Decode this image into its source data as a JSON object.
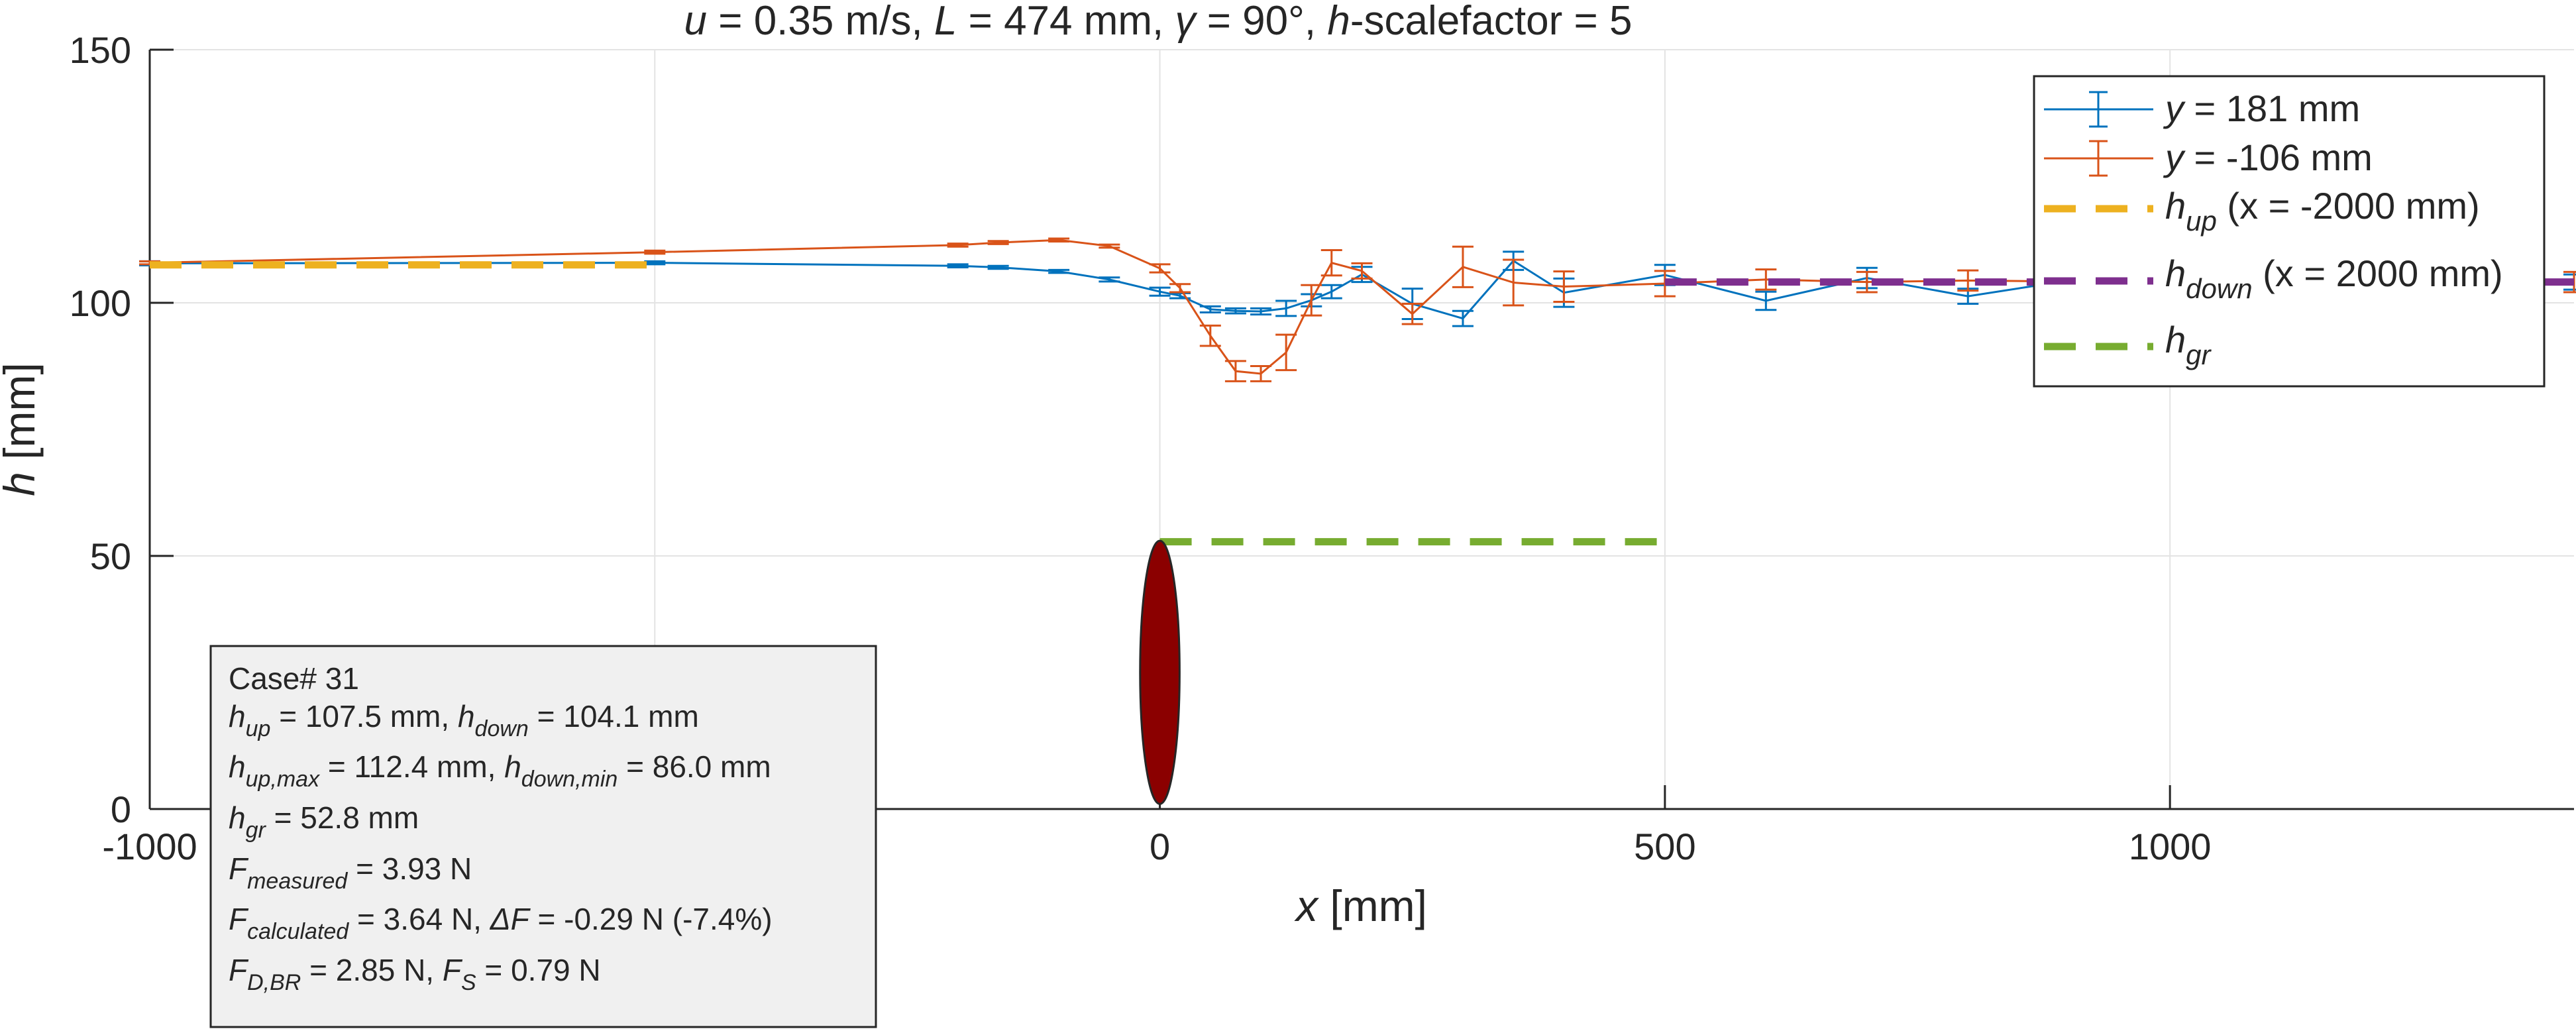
{
  "chart_data": {
    "type": "line",
    "title_parts": {
      "u_sym": "u",
      "u_rest": " = 0.35 m/s, ",
      "L_sym": "L",
      "L_rest": " = 474 mm, ",
      "g_sym": "γ",
      "g_rest": " = 90°, ",
      "h_sym": "h",
      "h_rest": "-scalefactor = 5"
    },
    "xlabel": {
      "sym": "x",
      "unit": " [mm]"
    },
    "ylabel": {
      "sym": "h",
      "unit": " [mm]"
    },
    "xlim": [
      -1000,
      1400
    ],
    "ylim": [
      0,
      150
    ],
    "xticks": [
      -1000,
      -500,
      0,
      500,
      1000
    ],
    "xtick_labels": [
      "-1000",
      "",
      "0",
      "500",
      "1000"
    ],
    "yticks": [
      0,
      50,
      100,
      150
    ],
    "ytick_labels": [
      "0",
      "50",
      "100",
      "150"
    ],
    "grid": true,
    "legend_placement": "top-right",
    "series": [
      {
        "name": "y = 181 mm",
        "name_sym": "y",
        "name_rest": " = 181 mm",
        "color": "#0072BD",
        "x": [
          -1000,
          -500,
          -200,
          -160,
          -100,
          -50,
          0,
          20,
          50,
          75,
          100,
          125,
          150,
          170,
          200,
          250,
          300,
          350,
          400,
          500,
          600,
          700,
          800,
          900,
          1000,
          1100,
          1200,
          1300,
          1400
        ],
        "y": [
          107.8,
          107.9,
          107.3,
          107.0,
          106.2,
          104.6,
          102.2,
          101.4,
          98.7,
          98.4,
          98.3,
          98.9,
          100.5,
          102.2,
          105.6,
          99.8,
          96.9,
          108.3,
          102.0,
          105.5,
          100.4,
          104.9,
          101.3,
          104.4,
          104.1,
          104.3,
          104.0,
          104.2,
          104.1
        ],
        "err": [
          0.4,
          0.3,
          0.3,
          0.3,
          0.3,
          0.4,
          0.8,
          0.5,
          0.6,
          0.5,
          0.6,
          1.5,
          1.2,
          1.3,
          1.5,
          3.0,
          1.5,
          1.8,
          2.8,
          2.0,
          1.8,
          2.0,
          1.5,
          1.5,
          1.5,
          1.5,
          1.5,
          1.5,
          1.5
        ]
      },
      {
        "name": "y = -106 mm",
        "name_sym": "y",
        "name_rest": " = -106 mm",
        "color": "#D95319",
        "x": [
          -1000,
          -500,
          -200,
          -160,
          -100,
          -50,
          0,
          20,
          50,
          75,
          100,
          125,
          150,
          170,
          200,
          250,
          300,
          350,
          400,
          500,
          600,
          700,
          800,
          900,
          1000,
          1100,
          1200,
          1300,
          1400
        ],
        "y": [
          107.9,
          110.0,
          111.4,
          111.9,
          112.4,
          111.2,
          106.8,
          102.9,
          93.5,
          86.5,
          86.0,
          90.2,
          100.5,
          107.9,
          106.3,
          97.8,
          107.1,
          104.0,
          103.2,
          103.8,
          104.6,
          104.1,
          104.4,
          104.2,
          104.1,
          104.2,
          104.1,
          104.2,
          104.1
        ],
        "err": [
          0.3,
          0.3,
          0.3,
          0.3,
          0.3,
          0.3,
          0.8,
          0.8,
          2.0,
          2.0,
          1.5,
          3.5,
          3.0,
          2.5,
          1.5,
          2.0,
          4.0,
          4.5,
          3.0,
          2.5,
          2.0,
          2.0,
          2.0,
          2.0,
          2.0,
          2.0,
          2.0,
          2.0,
          2.0
        ]
      },
      {
        "name": "h_up (x = -2000 mm)",
        "name_sym": "h",
        "name_sub": "up",
        "name_rest": " (x = -2000 mm)",
        "color": "#EDB120",
        "dashed": true,
        "x": [
          -1000,
          -1000,
          -500
        ],
        "y": [
          107.5,
          107.5,
          107.5
        ]
      },
      {
        "name": "h_down (x = 2000 mm)",
        "name_sym": "h",
        "name_sub": "down",
        "name_rest": " (x = 2000 mm)",
        "color": "#7E2F8E",
        "dashed": true,
        "x": [
          500,
          1400
        ],
        "y": [
          104.1,
          104.1
        ]
      },
      {
        "name": "h_gr",
        "name_sym": "h",
        "name_sub": "gr",
        "name_rest": "",
        "color": "#77AC30",
        "dashed": true,
        "x": [
          0,
          500
        ],
        "y": [
          52.8,
          52.8
        ]
      }
    ],
    "obstacle": {
      "x": 0,
      "y_center": 27,
      "y_half_height": 26,
      "x_half_width": 23,
      "color": "#8B0000"
    },
    "annotation": {
      "case": "Case# 31",
      "l2": {
        "a": "h",
        "a_sub": "up",
        "a_rest": " = 107.5 mm, ",
        "b": "h",
        "b_sub": "down",
        "b_rest": " = 104.1 mm"
      },
      "l3": {
        "a": "h",
        "a_sub": "up,max",
        "a_rest": " = 112.4 mm, ",
        "b": "h",
        "b_sub": "down,min",
        "b_rest": " = 86.0 mm"
      },
      "l4": {
        "a": "h",
        "a_sub": "gr",
        "a_rest": " = 52.8 mm"
      },
      "l5": {
        "a": "F",
        "a_sub": "measured",
        "a_rest": " = 3.93 N"
      },
      "l6": {
        "a": "F",
        "a_sub": "calculated",
        "a_rest": " = 3.64 N, ",
        "b": "ΔF",
        "b_rest": " = -0.29 N (-7.4%)"
      },
      "l7": {
        "a": "F",
        "a_sub": "D,BR",
        "a_rest": " = 2.85 N, ",
        "b": "F",
        "b_sub": "S",
        "b_rest": " = 0.79 N"
      }
    }
  }
}
